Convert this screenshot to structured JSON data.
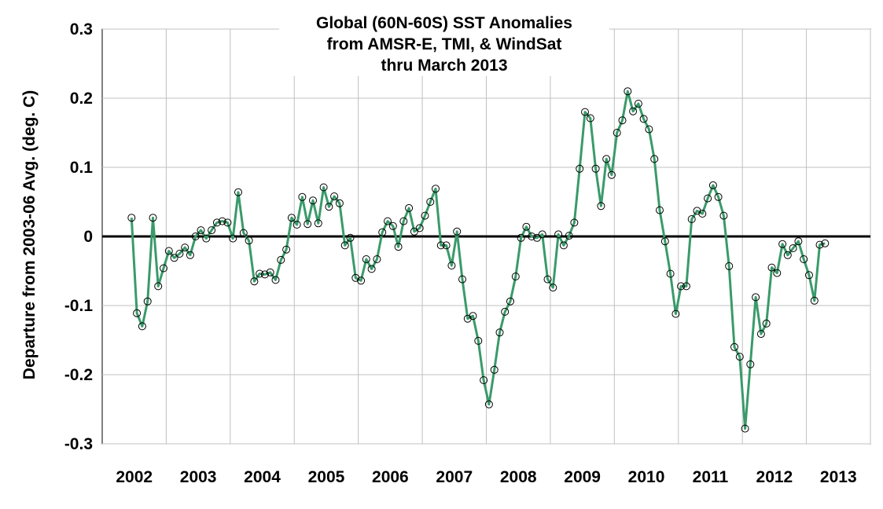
{
  "chart_data": {
    "type": "line",
    "title": [
      "Global (60N-60S) SST Anomalies",
      "from AMSR-E, TMI, & WindSat",
      "thru March 2013"
    ],
    "ylabel": "Departure from 2003-06 Avg. (deg. C)",
    "xlabel": "",
    "xlim": [
      2002,
      2014
    ],
    "ylim": [
      -0.3,
      0.3
    ],
    "x_ticks": [
      2002,
      2003,
      2004,
      2005,
      2006,
      2007,
      2008,
      2009,
      2010,
      2011,
      2012,
      2013
    ],
    "y_ticks": [
      0.3,
      0.2,
      0.1,
      0,
      -0.1,
      -0.2,
      -0.3
    ],
    "y_tick_labels": [
      "0.3",
      "0.2",
      "0.1",
      "0",
      "-0.1",
      "-0.2",
      "-0.3"
    ],
    "grid": true,
    "line_color": "#3a9a6a",
    "marker": "open-circle",
    "series": [
      {
        "start": "2002-06",
        "values": [
          0.027,
          -0.111,
          -0.13,
          -0.094,
          0.027,
          -0.072,
          -0.046,
          -0.021,
          -0.031,
          -0.025,
          -0.016,
          -0.027,
          0.0,
          0.009,
          -0.003,
          0.009,
          0.02,
          0.022,
          0.02,
          -0.003,
          0.064,
          0.005,
          -0.006,
          -0.065,
          -0.054,
          -0.055,
          -0.052,
          -0.063,
          -0.034,
          -0.019,
          0.027,
          0.017,
          0.057,
          0.018,
          0.052,
          0.019,
          0.071,
          0.043,
          0.058,
          0.048,
          -0.013,
          -0.002,
          -0.06,
          -0.064,
          -0.033,
          -0.047,
          -0.033,
          0.006,
          0.022,
          0.015,
          -0.015,
          0.022,
          0.041,
          0.007,
          0.012,
          0.03,
          0.05,
          0.069,
          -0.013,
          -0.013,
          -0.042,
          0.007,
          -0.062,
          -0.119,
          -0.115,
          -0.151,
          -0.208,
          -0.243,
          -0.193,
          -0.139,
          -0.109,
          -0.094,
          -0.058,
          -0.002,
          0.014,
          0.0,
          -0.002,
          0.003,
          -0.062,
          -0.074,
          0.003,
          -0.013,
          0.001,
          0.02,
          0.098,
          0.18,
          0.171,
          0.098,
          0.044,
          0.112,
          0.089,
          0.15,
          0.168,
          0.21,
          0.181,
          0.192,
          0.17,
          0.155,
          0.112,
          0.038,
          -0.007,
          -0.054,
          -0.112,
          -0.072,
          -0.072,
          0.025,
          0.037,
          0.033,
          0.055,
          0.074,
          0.057,
          0.03,
          -0.043,
          -0.16,
          -0.174,
          -0.278,
          -0.185,
          -0.088,
          -0.141,
          -0.126,
          -0.045,
          -0.053,
          -0.011,
          -0.027,
          -0.017,
          -0.007,
          -0.033,
          -0.056,
          -0.093,
          -0.012,
          -0.01
        ]
      }
    ]
  }
}
